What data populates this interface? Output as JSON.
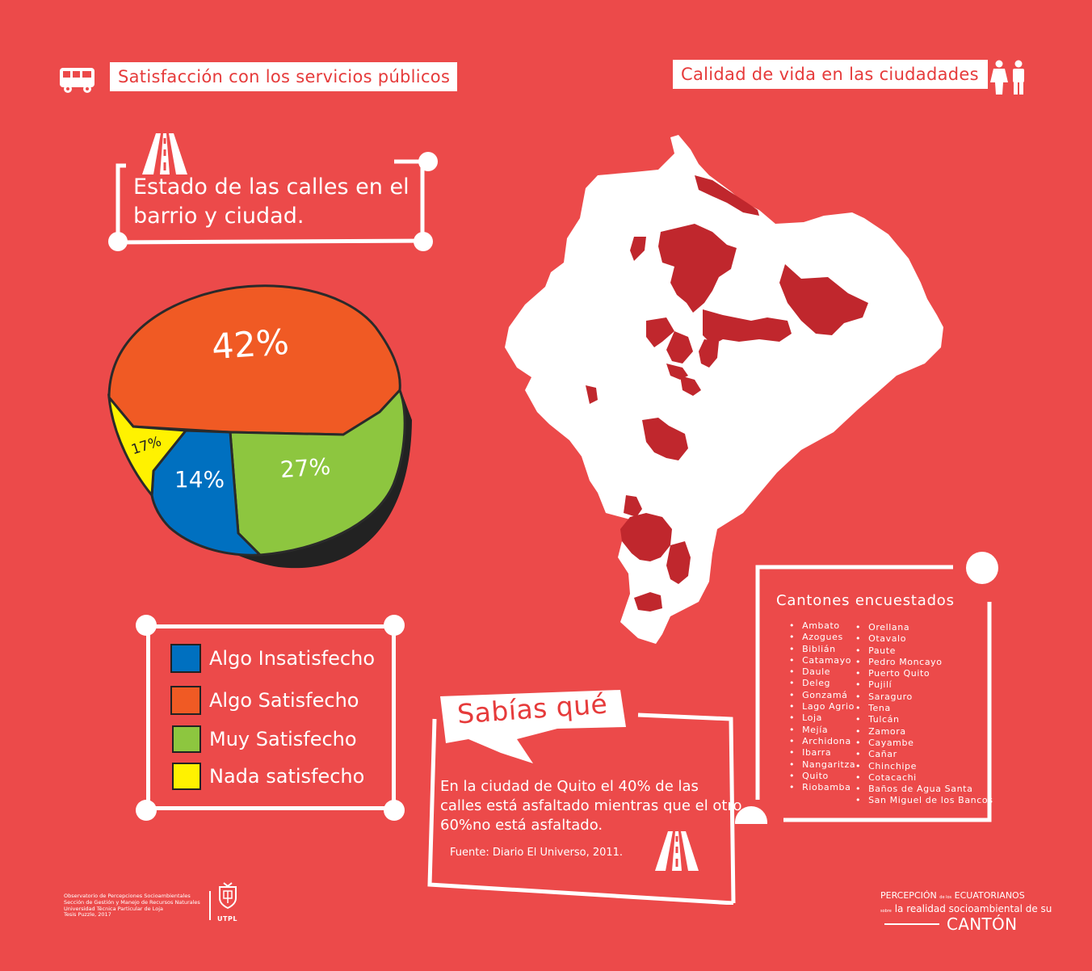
{
  "header": {
    "left_title": "Satisfacción con los servicios públicos",
    "right_title": "Calidad de vida en las ciudadades",
    "left_icon": "bus-icon",
    "right_icon": "people-icon"
  },
  "chart_section": {
    "title_line1": "Estado de las calles en el",
    "title_line2": "barrio y ciudad.",
    "icon": "road-icon"
  },
  "chart_data": {
    "type": "pie",
    "slices": [
      {
        "label": "Algo Satisfecho",
        "value": 42,
        "display": "42%",
        "color": "#f05a24"
      },
      {
        "label": "Muy Satisfecho",
        "value": 27,
        "display": "27%",
        "color": "#8dc63f"
      },
      {
        "label": "Algo Insatisfecho",
        "value": 14,
        "display": "14%",
        "color": "#0070c0"
      },
      {
        "label": "Nada satisfecho",
        "value": 17,
        "display": "17%",
        "color": "#fff200"
      }
    ],
    "legend_placement": "bottom-left"
  },
  "legend": {
    "items": [
      {
        "label": "Algo Insatisfecho",
        "color": "#0070c0"
      },
      {
        "label": "Algo Satisfecho",
        "color": "#f05a24"
      },
      {
        "label": "Muy Satisfecho",
        "color": "#8dc63f"
      },
      {
        "label": "Nada satisfecho",
        "color": "#fff200"
      }
    ]
  },
  "sabias": {
    "title": "Sabías qué",
    "line1": "En la ciudad de Quito el 40% de las",
    "line2": "calles está asfaltado mientras que el otro",
    "line3": "60%no está asfaltado.",
    "source": "Fuente: Diario El Universo, 2011."
  },
  "cantones": {
    "title": "Cantones encuestados",
    "col1": [
      "Ambato",
      "Azogues",
      "Biblián",
      "Catamayo",
      "Daule",
      "Deleg",
      "Gonzamá",
      "Lago Agrio",
      "Loja",
      "Mejía",
      "Archidona",
      "Ibarra",
      "Nangaritza",
      "Quito",
      "Riobamba"
    ],
    "col2": [
      "Orellana",
      "Otavalo",
      "Paute",
      "Pedro Moncayo",
      "Puerto Quito",
      "Pujilí",
      "Saraguro",
      "Tena",
      "Tulcán",
      "Zamora",
      "Cayambe",
      "Cañar",
      "Chinchipe",
      "Cotacachi",
      "Baños de Agua Santa",
      "San Miguel de los Bancos"
    ]
  },
  "footer": {
    "line1": "Observatorio de Percepciones Socioambientales",
    "line2": "Sección de Gestión y Manejo de Recursos Naturales",
    "line3": "Universidad Técnica Particular de Loja",
    "line4": "Tesis Puzzle, 2017",
    "logo_text": "UTPL",
    "brand_line1a": "PERCEPCIÓN",
    "brand_line1b": "de los",
    "brand_line1c": "ECUATORIANOS",
    "brand_line2a": "sobre",
    "brand_line2b": "la realidad socioambiental de su",
    "brand_line3": "CANTÓN"
  }
}
